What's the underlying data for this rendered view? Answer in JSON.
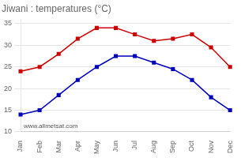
{
  "chart_data": {
    "type": "line",
    "title": "Jiwani : temperatures (°C)",
    "categories": [
      "Jan",
      "Feb",
      "Mar",
      "Apr",
      "May",
      "Jun",
      "Jul",
      "Aug",
      "Sep",
      "Oct",
      "Nov",
      "Dec"
    ],
    "series": [
      {
        "color": "#cc0000",
        "values": [
          24,
          25,
          28,
          31.5,
          34,
          34,
          32.5,
          31,
          31.5,
          32.5,
          29.5,
          25
        ]
      },
      {
        "color": "#0000bb",
        "values": [
          14,
          15,
          18.5,
          22,
          25,
          27.5,
          27.5,
          26,
          24.5,
          22,
          18,
          15
        ]
      }
    ],
    "ylim": [
      10,
      36
    ],
    "yticks": [
      10,
      15,
      20,
      25,
      30,
      35
    ],
    "grid": true,
    "marker": "square",
    "annotations": [
      "www.allmetsat.com"
    ]
  }
}
